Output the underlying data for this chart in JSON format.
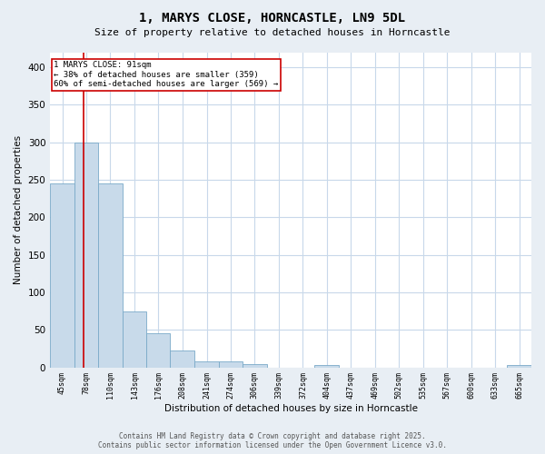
{
  "title1": "1, MARYS CLOSE, HORNCASTLE, LN9 5DL",
  "title2": "Size of property relative to detached houses in Horncastle",
  "xlabel": "Distribution of detached houses by size in Horncastle",
  "ylabel": "Number of detached properties",
  "bar_edges": [
    45,
    78,
    110,
    143,
    176,
    208,
    241,
    274,
    306,
    339,
    372,
    404,
    437,
    469,
    502,
    535,
    567,
    600,
    633,
    665,
    698
  ],
  "bar_heights": [
    245,
    300,
    245,
    75,
    45,
    22,
    8,
    8,
    4,
    0,
    0,
    3,
    0,
    0,
    0,
    0,
    0,
    0,
    0,
    3
  ],
  "bar_color": "#c8daea",
  "bar_edgecolor": "#7aaac8",
  "property_line_x": 91,
  "property_line_color": "#cc0000",
  "annotation_text": "1 MARYS CLOSE: 91sqm\n← 38% of detached houses are smaller (359)\n60% of semi-detached houses are larger (569) →",
  "annotation_box_color": "#cc0000",
  "ylim": [
    0,
    420
  ],
  "yticks": [
    0,
    50,
    100,
    150,
    200,
    250,
    300,
    350,
    400
  ],
  "footer_text": "Contains HM Land Registry data © Crown copyright and database right 2025.\nContains public sector information licensed under the Open Government Licence v3.0.",
  "bg_color": "#e8eef4",
  "plot_bg_color": "#ffffff",
  "grid_color": "#c8d8ea"
}
